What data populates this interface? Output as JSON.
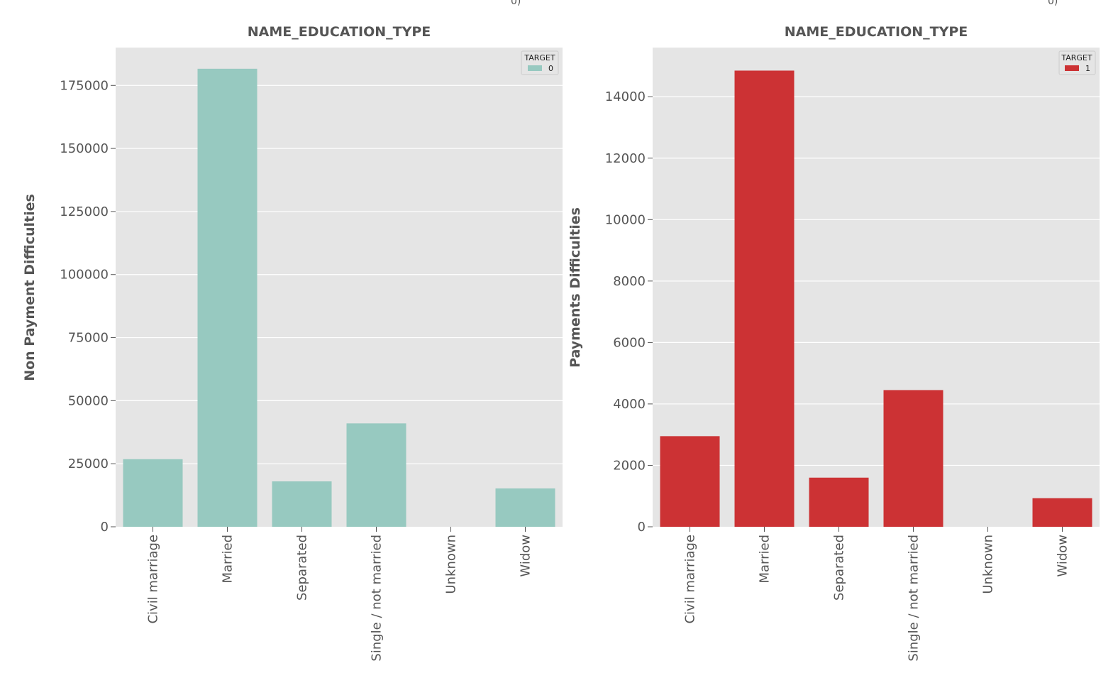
{
  "top_fragments": [
    "0)",
    "0)"
  ],
  "chart_data": [
    {
      "type": "bar",
      "title": "NAME_EDUCATION_TYPE",
      "xlabel": "",
      "ylabel": "Non Payment Difficulties",
      "categories": [
        "Civil marriage",
        "Married",
        "Separated",
        "Single / not married",
        "Unknown",
        "Widow"
      ],
      "series": [
        {
          "name": "0",
          "values": [
            26800,
            181600,
            18000,
            41000,
            0,
            15200
          ]
        }
      ],
      "ylim": [
        0,
        190000
      ],
      "yticks": [
        0,
        25000,
        50000,
        75000,
        100000,
        125000,
        150000,
        175000
      ],
      "legend": {
        "title": "TARGET",
        "entries": [
          "0"
        ],
        "placement": "top-right"
      },
      "grid": true,
      "colors": {
        "bar": "#97c9c0",
        "plot_bg": "#e5e5e5"
      }
    },
    {
      "type": "bar",
      "title": "NAME_EDUCATION_TYPE",
      "xlabel": "",
      "ylabel": "Payments Difficulties",
      "categories": [
        "Civil marriage",
        "Married",
        "Separated",
        "Single / not married",
        "Unknown",
        "Widow"
      ],
      "series": [
        {
          "name": "1",
          "values": [
            2950,
            14850,
            1600,
            4450,
            0,
            930
          ]
        }
      ],
      "ylim": [
        0,
        15600
      ],
      "yticks": [
        0,
        2000,
        4000,
        6000,
        8000,
        10000,
        12000,
        14000
      ],
      "legend": {
        "title": "TARGET",
        "entries": [
          "1"
        ],
        "placement": "top-right"
      },
      "grid": true,
      "colors": {
        "bar": "#cc3234",
        "plot_bg": "#e5e5e5"
      }
    }
  ]
}
